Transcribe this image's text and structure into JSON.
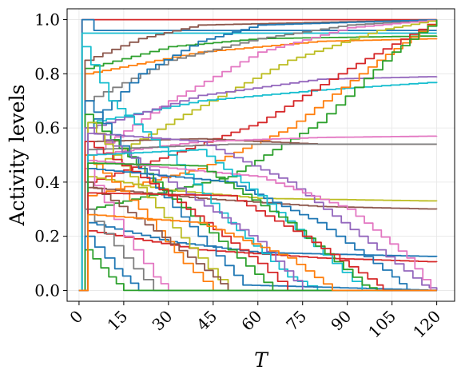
{
  "chart_data": {
    "type": "line",
    "title": "",
    "xlabel": "T",
    "ylabel": "Activity levels",
    "xlim": [
      -4,
      126
    ],
    "ylim": [
      -0.04,
      1.04
    ],
    "xticks": [
      0,
      15,
      30,
      45,
      60,
      75,
      90,
      105,
      120
    ],
    "xtick_labels": [
      "0",
      "15",
      "30",
      "45",
      "60",
      "75",
      "90",
      "105",
      "120"
    ],
    "yticks": [
      0.0,
      0.2,
      0.4,
      0.6,
      0.8,
      1.0
    ],
    "ytick_labels": [
      "0.0",
      "0.2",
      "0.4",
      "0.6",
      "0.8",
      "1.0"
    ],
    "grid": true,
    "legend": "none",
    "x_range": [
      0,
      120
    ],
    "colors": [
      "#1f77b4",
      "#ff7f0e",
      "#2ca02c",
      "#d62728",
      "#9467bd",
      "#8c564b",
      "#e377c2",
      "#bcbd22",
      "#17becf",
      "#7f7f7f"
    ],
    "series": [
      {
        "color": "#d62728",
        "points": [
          [
            0,
            0
          ],
          [
            1,
            1.0
          ],
          [
            120,
            1.0
          ]
        ]
      },
      {
        "color": "#1f77b4",
        "points": [
          [
            0,
            0
          ],
          [
            1,
            1.0
          ],
          [
            5,
            0.96
          ],
          [
            120,
            0.96
          ]
        ]
      },
      {
        "color": "#17becf",
        "points": [
          [
            0,
            0
          ],
          [
            1,
            0.95
          ],
          [
            10,
            0.95
          ],
          [
            120,
            0.95
          ]
        ]
      },
      {
        "color": "#2ca02c",
        "points": [
          [
            0,
            0
          ],
          [
            2,
            0.82
          ],
          [
            30,
            0.9
          ],
          [
            60,
            0.93
          ],
          [
            120,
            0.94
          ]
        ]
      },
      {
        "color": "#ff7f0e",
        "points": [
          [
            0,
            0
          ],
          [
            2,
            0.8
          ],
          [
            40,
            0.88
          ],
          [
            80,
            0.92
          ],
          [
            120,
            0.93
          ]
        ]
      },
      {
        "color": "#7f7f7f",
        "points": [
          [
            0,
            0
          ],
          [
            2,
            0.7
          ],
          [
            30,
            0.85
          ],
          [
            60,
            0.93
          ],
          [
            90,
            0.98
          ],
          [
            120,
            1.0
          ]
        ]
      },
      {
        "color": "#8c564b",
        "points": [
          [
            0,
            0
          ],
          [
            2,
            0.85
          ],
          [
            20,
            0.93
          ],
          [
            40,
            0.98
          ],
          [
            120,
            1.0
          ]
        ]
      },
      {
        "color": "#1f77b4",
        "points": [
          [
            0,
            0
          ],
          [
            2,
            0.6
          ],
          [
            20,
            0.8
          ],
          [
            40,
            0.92
          ],
          [
            60,
            0.98
          ],
          [
            120,
            1.0
          ]
        ]
      },
      {
        "color": "#e377c2",
        "points": [
          [
            0,
            0
          ],
          [
            3,
            0.5
          ],
          [
            30,
            0.7
          ],
          [
            60,
            0.88
          ],
          [
            90,
            0.97
          ],
          [
            120,
            1.0
          ]
        ]
      },
      {
        "color": "#bcbd22",
        "points": [
          [
            0,
            0
          ],
          [
            3,
            0.45
          ],
          [
            35,
            0.65
          ],
          [
            70,
            0.85
          ],
          [
            100,
            0.96
          ],
          [
            120,
            1.0
          ]
        ]
      },
      {
        "color": "#17becf",
        "points": [
          [
            0,
            0
          ],
          [
            3,
            0.62
          ],
          [
            40,
            0.7
          ],
          [
            80,
            0.74
          ],
          [
            120,
            0.77
          ]
        ]
      },
      {
        "color": "#9467bd",
        "points": [
          [
            0,
            0
          ],
          [
            3,
            0.6
          ],
          [
            40,
            0.72
          ],
          [
            80,
            0.78
          ],
          [
            120,
            0.79
          ]
        ]
      },
      {
        "color": "#d62728",
        "points": [
          [
            0,
            0
          ],
          [
            3,
            0.4
          ],
          [
            30,
            0.5
          ],
          [
            60,
            0.62
          ],
          [
            90,
            0.82
          ],
          [
            120,
            1.0
          ]
        ]
      },
      {
        "color": "#ff7f0e",
        "points": [
          [
            0,
            0
          ],
          [
            3,
            0.35
          ],
          [
            40,
            0.45
          ],
          [
            70,
            0.6
          ],
          [
            100,
            0.85
          ],
          [
            120,
            1.0
          ]
        ]
      },
      {
        "color": "#2ca02c",
        "points": [
          [
            0,
            0
          ],
          [
            3,
            0.3
          ],
          [
            50,
            0.42
          ],
          [
            80,
            0.62
          ],
          [
            105,
            0.88
          ],
          [
            120,
            1.0
          ]
        ]
      },
      {
        "color": "#8c564b",
        "points": [
          [
            0,
            0
          ],
          [
            3,
            0.55
          ],
          [
            40,
            0.56
          ],
          [
            80,
            0.54
          ],
          [
            120,
            0.54
          ]
        ]
      },
      {
        "color": "#e377c2",
        "points": [
          [
            0,
            0
          ],
          [
            3,
            0.5
          ],
          [
            40,
            0.55
          ],
          [
            80,
            0.565
          ],
          [
            120,
            0.57
          ]
        ]
      },
      {
        "color": "#7f7f7f",
        "points": [
          [
            0,
            0
          ],
          [
            3,
            0.52
          ],
          [
            50,
            0.54
          ],
          [
            120,
            0.54
          ]
        ]
      },
      {
        "color": "#bcbd22",
        "points": [
          [
            0,
            0
          ],
          [
            3,
            0.42
          ],
          [
            30,
            0.37
          ],
          [
            60,
            0.34
          ],
          [
            120,
            0.33
          ]
        ]
      },
      {
        "color": "#8c564b",
        "points": [
          [
            0,
            0
          ],
          [
            3,
            0.38
          ],
          [
            40,
            0.34
          ],
          [
            80,
            0.31
          ],
          [
            120,
            0.3
          ]
        ]
      },
      {
        "color": "#1f77b4",
        "points": [
          [
            0,
            0
          ],
          [
            3,
            0.25
          ],
          [
            30,
            0.18
          ],
          [
            60,
            0.14
          ],
          [
            120,
            0.125
          ]
        ]
      },
      {
        "color": "#d62728",
        "points": [
          [
            0,
            0
          ],
          [
            3,
            0.22
          ],
          [
            40,
            0.15
          ],
          [
            80,
            0.12
          ],
          [
            120,
            0.105
          ]
        ]
      },
      {
        "color": "#17becf",
        "points": [
          [
            0,
            0
          ],
          [
            1,
            0.9
          ],
          [
            10,
            0.7
          ],
          [
            30,
            0.5
          ],
          [
            50,
            0.25
          ],
          [
            70,
            0.05
          ],
          [
            80,
            0
          ],
          [
            120,
            0
          ]
        ]
      },
      {
        "color": "#1f77b4",
        "points": [
          [
            0,
            0
          ],
          [
            2,
            0.7
          ],
          [
            20,
            0.45
          ],
          [
            40,
            0.2
          ],
          [
            55,
            0.02
          ],
          [
            120,
            0
          ]
        ]
      },
      {
        "color": "#2ca02c",
        "points": [
          [
            0,
            0
          ],
          [
            2,
            0.65
          ],
          [
            25,
            0.4
          ],
          [
            50,
            0.15
          ],
          [
            65,
            0
          ],
          [
            120,
            0
          ]
        ]
      },
      {
        "color": "#9467bd",
        "points": [
          [
            0,
            0
          ],
          [
            2,
            0.6
          ],
          [
            30,
            0.4
          ],
          [
            60,
            0.18
          ],
          [
            75,
            0
          ],
          [
            120,
            0
          ]
        ]
      },
      {
        "color": "#ff7f0e",
        "points": [
          [
            0,
            0
          ],
          [
            2,
            0.5
          ],
          [
            20,
            0.3
          ],
          [
            35,
            0.1
          ],
          [
            45,
            0
          ],
          [
            120,
            0
          ]
        ]
      },
      {
        "color": "#e377c2",
        "points": [
          [
            0,
            0
          ],
          [
            2,
            0.45
          ],
          [
            15,
            0.2
          ],
          [
            25,
            0.05
          ],
          [
            30,
            0
          ],
          [
            120,
            0
          ]
        ]
      },
      {
        "color": "#bcbd22",
        "points": [
          [
            0,
            0
          ],
          [
            3,
            0.62
          ],
          [
            20,
            0.38
          ],
          [
            40,
            0.12
          ],
          [
            50,
            0
          ],
          [
            120,
            0
          ]
        ]
      },
      {
        "color": "#d62728",
        "points": [
          [
            0,
            0
          ],
          [
            2,
            0.55
          ],
          [
            30,
            0.35
          ],
          [
            60,
            0.1
          ],
          [
            70,
            0
          ],
          [
            120,
            0
          ]
        ]
      },
      {
        "color": "#8c564b",
        "points": [
          [
            0,
            0
          ],
          [
            2,
            0.4
          ],
          [
            25,
            0.22
          ],
          [
            45,
            0.05
          ],
          [
            50,
            0
          ],
          [
            120,
            0
          ]
        ]
      },
      {
        "color": "#7f7f7f",
        "points": [
          [
            0,
            0
          ],
          [
            2,
            0.3
          ],
          [
            15,
            0.12
          ],
          [
            25,
            0
          ],
          [
            120,
            0
          ]
        ]
      },
      {
        "color": "#1f77b4",
        "points": [
          [
            0,
            0
          ],
          [
            2,
            0.2
          ],
          [
            12,
            0.08
          ],
          [
            20,
            0
          ],
          [
            120,
            0
          ]
        ]
      },
      {
        "color": "#2ca02c",
        "points": [
          [
            0,
            0
          ],
          [
            2,
            0.15
          ],
          [
            10,
            0.05
          ],
          [
            15,
            0
          ],
          [
            120,
            0
          ]
        ]
      },
      {
        "color": "#9467bd",
        "points": [
          [
            0,
            0
          ],
          [
            3,
            0.58
          ],
          [
            40,
            0.55
          ],
          [
            70,
            0.4
          ],
          [
            100,
            0.15
          ],
          [
            115,
            0.02
          ],
          [
            120,
            0
          ]
        ]
      },
      {
        "color": "#1f77b4",
        "points": [
          [
            0,
            0
          ],
          [
            3,
            0.45
          ],
          [
            50,
            0.4
          ],
          [
            80,
            0.25
          ],
          [
            105,
            0.05
          ],
          [
            110,
            0
          ],
          [
            120,
            0
          ]
        ]
      },
      {
        "color": "#e377c2",
        "points": [
          [
            0,
            0
          ],
          [
            3,
            0.48
          ],
          [
            60,
            0.42
          ],
          [
            90,
            0.3
          ],
          [
            110,
            0.12
          ],
          [
            118,
            0
          ],
          [
            120,
            0
          ]
        ]
      },
      {
        "color": "#17becf",
        "points": [
          [
            0,
            0
          ],
          [
            3,
            0.5
          ],
          [
            40,
            0.52
          ],
          [
            60,
            0.35
          ],
          [
            85,
            0.1
          ],
          [
            95,
            0
          ],
          [
            120,
            0
          ]
        ]
      },
      {
        "color": "#2ca02c",
        "points": [
          [
            0,
            0
          ],
          [
            3,
            0.47
          ],
          [
            40,
            0.46
          ],
          [
            70,
            0.25
          ],
          [
            95,
            0.02
          ],
          [
            100,
            0
          ],
          [
            120,
            0
          ]
        ]
      },
      {
        "color": "#d62728",
        "points": [
          [
            0,
            0
          ],
          [
            3,
            0.36
          ],
          [
            50,
            0.35
          ],
          [
            75,
            0.2
          ],
          [
            100,
            0.02
          ],
          [
            102,
            0
          ],
          [
            120,
            0
          ]
        ]
      },
      {
        "color": "#ff7f0e",
        "points": [
          [
            0,
            0
          ],
          [
            3,
            0.28
          ],
          [
            40,
            0.25
          ],
          [
            70,
            0.12
          ],
          [
            85,
            0
          ],
          [
            120,
            0
          ]
        ]
      }
    ]
  }
}
